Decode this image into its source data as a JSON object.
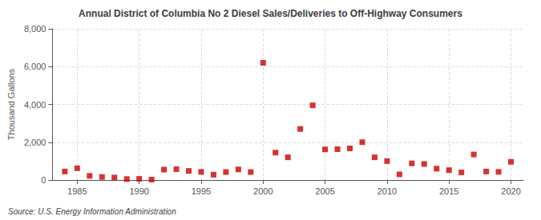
{
  "chart_data": {
    "type": "scatter",
    "title": "Annual District of Columbia No 2 Diesel Sales/Deliveries to Off-Highway Consumers",
    "ylabel": "Thousand Gallons",
    "annotation": "Source: U.S. Energy Information Administration",
    "x": [
      1984,
      1985,
      1986,
      1987,
      1988,
      1989,
      1990,
      1991,
      1992,
      1993,
      1994,
      1995,
      1996,
      1997,
      1998,
      1999,
      2000,
      2001,
      2002,
      2003,
      2004,
      2005,
      2006,
      2007,
      2008,
      2009,
      2010,
      2011,
      2012,
      2013,
      2014,
      2015,
      2016,
      2017,
      2018,
      2019,
      2020
    ],
    "values": [
      450,
      620,
      220,
      160,
      130,
      50,
      60,
      20,
      550,
      570,
      480,
      430,
      280,
      420,
      560,
      420,
      6200,
      1450,
      1200,
      2700,
      3950,
      1620,
      1630,
      1670,
      2000,
      1200,
      1000,
      300,
      880,
      850,
      600,
      520,
      400,
      1350,
      450,
      430,
      960
    ],
    "color": "#cc0000",
    "marker": "square",
    "xlim": [
      1983,
      2021
    ],
    "xticks": [
      1985,
      1990,
      1995,
      2000,
      2005,
      2010,
      2015,
      2020
    ],
    "ylim": [
      0,
      8000
    ],
    "yticks": [
      0,
      {
        "value": 2000,
        "label": "2,000"
      },
      {
        "value": 4000,
        "label": "4,000"
      },
      {
        "value": 6000,
        "label": "6,000"
      },
      {
        "value": 8000,
        "label": "8,000"
      }
    ],
    "grid": true
  }
}
